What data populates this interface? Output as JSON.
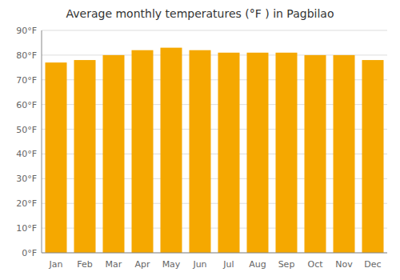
{
  "chart_data": {
    "type": "bar",
    "title": "Average monthly temperatures (°F ) in Pagbilao",
    "categories": [
      "Jan",
      "Feb",
      "Mar",
      "Apr",
      "May",
      "Jun",
      "Jul",
      "Aug",
      "Sep",
      "Oct",
      "Nov",
      "Dec"
    ],
    "values": [
      77,
      78,
      80,
      82,
      83,
      82,
      81,
      81,
      81,
      80,
      80,
      78
    ],
    "color": "#F5A800",
    "ylim": [
      0,
      90
    ],
    "yticks": [
      {
        "value": 0,
        "label": "0°F"
      },
      {
        "value": 10,
        "label": "10°F"
      },
      {
        "value": 20,
        "label": "20°F"
      },
      {
        "value": 30,
        "label": "30°F"
      },
      {
        "value": 40,
        "label": "40°F"
      },
      {
        "value": 50,
        "label": "50°F"
      },
      {
        "value": 60,
        "label": "60°F"
      },
      {
        "value": 70,
        "label": "70°F"
      },
      {
        "value": 80,
        "label": "80°F"
      },
      {
        "value": 90,
        "label": "90°F"
      }
    ],
    "grid": true
  }
}
